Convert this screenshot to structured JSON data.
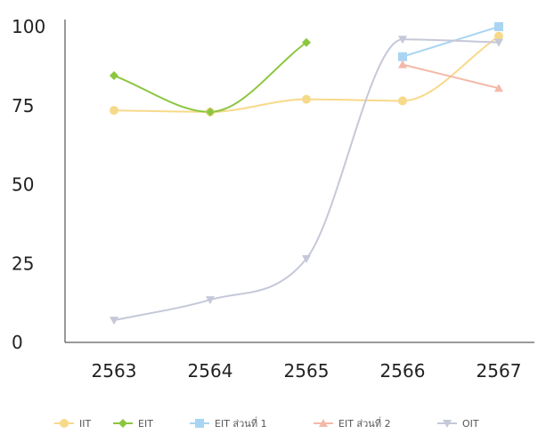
{
  "chart_data": {
    "type": "line",
    "title": "",
    "xlabel": "",
    "ylabel": "",
    "categories": [
      "2563",
      "2564",
      "2565",
      "2566",
      "2567"
    ],
    "ylim": [
      0,
      100
    ],
    "yticks": [
      "0",
      "25",
      "50",
      "75",
      "100"
    ],
    "grid": false,
    "legend_position": "bottom",
    "series": [
      {
        "name": "IIT",
        "color": "#f7d98a",
        "marker": "circle",
        "values": [
          73.5,
          73,
          77,
          76.5,
          97
        ]
      },
      {
        "name": "EIT",
        "color": "#8cc63f",
        "marker": "diamond",
        "values": [
          84.5,
          73,
          95,
          null,
          null
        ]
      },
      {
        "name": "EIT ส่วนที่ 1",
        "color": "#a9d5f2",
        "marker": "square",
        "values": [
          null,
          null,
          null,
          90.5,
          100
        ]
      },
      {
        "name": "EIT ส่วนที่ 2",
        "color": "#f4b9a8",
        "marker": "triangle-up",
        "values": [
          null,
          null,
          null,
          88,
          80.5
        ]
      },
      {
        "name": "OIT",
        "color": "#c5c8d8",
        "marker": "triangle-down",
        "values": [
          7,
          13.5,
          26.5,
          96,
          95
        ]
      }
    ]
  }
}
